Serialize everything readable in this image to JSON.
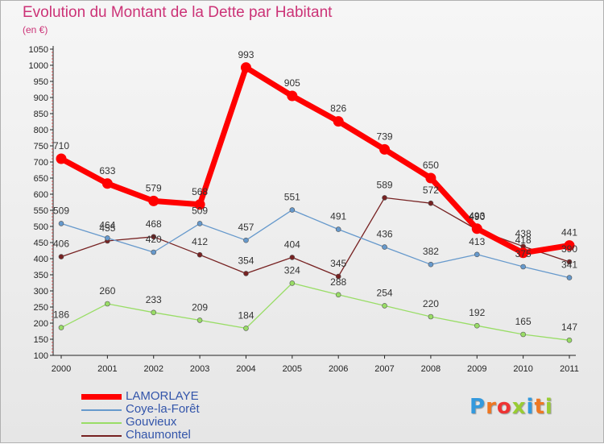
{
  "chart_data": {
    "type": "line",
    "title": "Evolution du Montant de la Dette par Habitant",
    "subtitle": "(en €)",
    "xlabel": "",
    "ylabel": "",
    "categories": [
      "2000",
      "2001",
      "2002",
      "2003",
      "2004",
      "2005",
      "2006",
      "2007",
      "2008",
      "2009",
      "2010",
      "2011"
    ],
    "ylim": [
      100,
      1050
    ],
    "yticks": [
      "100",
      "150",
      "200",
      "250",
      "300",
      "350",
      "400",
      "450",
      "500",
      "550",
      "600",
      "650",
      "700",
      "750",
      "800",
      "850",
      "900",
      "950",
      "1000",
      "1050"
    ],
    "grid": false,
    "legend_position": "bottom-left",
    "series": [
      {
        "name": "LAMORLAYE",
        "color": "#ff0000",
        "values": [
          710,
          633,
          579,
          568,
          993,
          905,
          826,
          739,
          650,
          493,
          418,
          441
        ]
      },
      {
        "name": "Coye-la-Forêt",
        "color": "#6699cc",
        "values": [
          509,
          464,
          420,
          509,
          457,
          551,
          491,
          436,
          382,
          413,
          375,
          341
        ]
      },
      {
        "name": "Gouvieux",
        "color": "#99dd66",
        "values": [
          186,
          260,
          233,
          209,
          184,
          324,
          288,
          254,
          220,
          192,
          165,
          147
        ]
      },
      {
        "name": "Chaumontel",
        "color": "#772222",
        "values": [
          406,
          455,
          468,
          412,
          354,
          404,
          345,
          589,
          572,
          490,
          438,
          390
        ]
      }
    ]
  },
  "logo": {
    "text": "Proxiti",
    "colors": [
      "#3399dd",
      "#ee7722",
      "#ee3333",
      "#99cc33",
      "#3399dd",
      "#ee7722",
      "#99cc33"
    ]
  }
}
